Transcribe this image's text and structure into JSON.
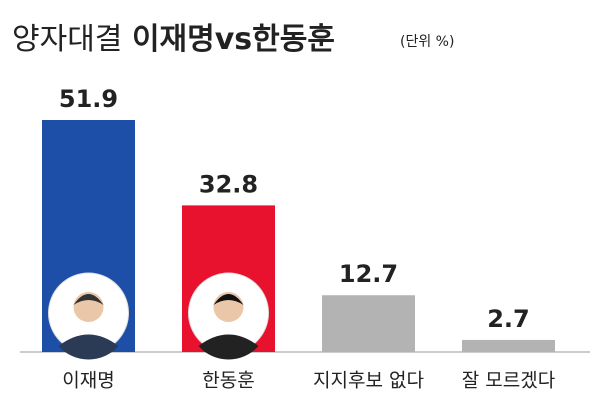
{
  "chart_data": {
    "type": "bar",
    "title": "양자대결",
    "title_highlight": "이재명vs한동훈",
    "subtitle": "(단위 %)",
    "categories": [
      "이재명",
      "한동훈",
      "지지후보 없다",
      "잘 모르겠다"
    ],
    "values": [
      51.9,
      32.8,
      12.7,
      2.7
    ],
    "colors": [
      "#1d4fa8",
      "#e8122e",
      "#b3b3b3",
      "#b3b3b3"
    ]
  }
}
